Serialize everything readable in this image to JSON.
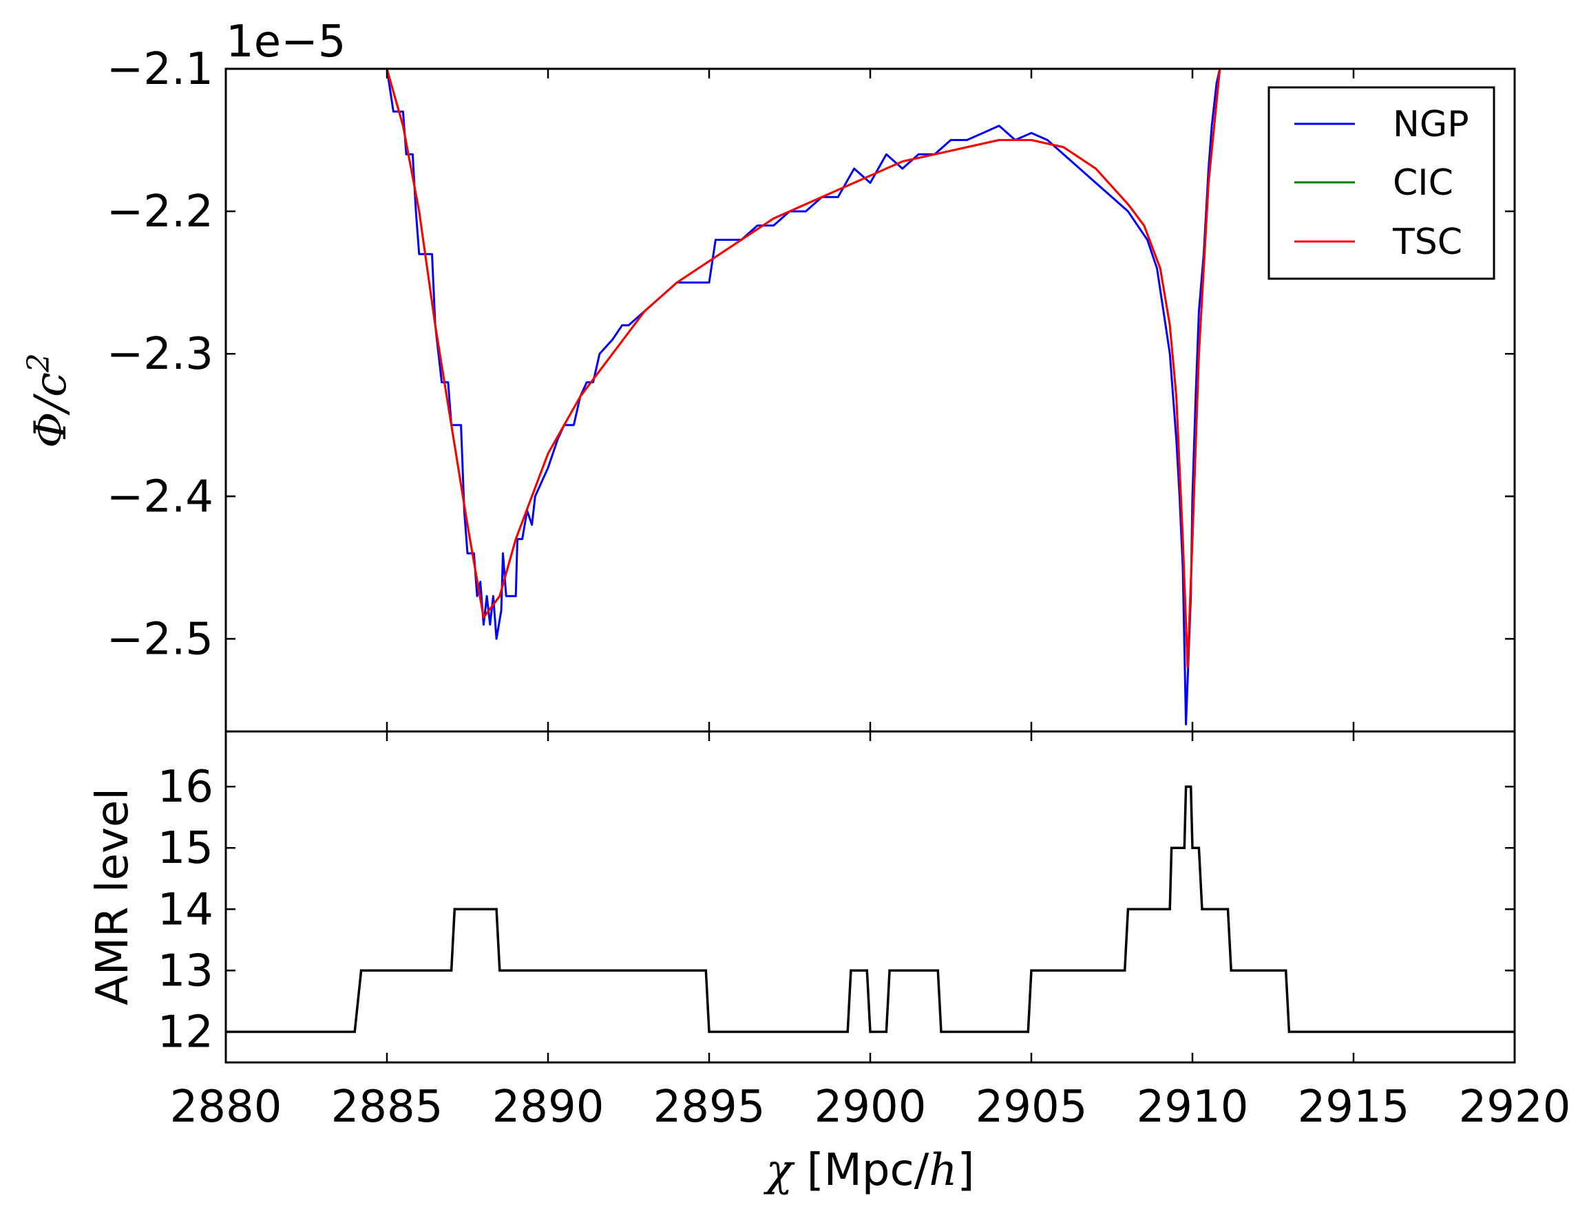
{
  "chart_data": [
    {
      "type": "line",
      "ylabel": "Φ/c²",
      "ylabel_parts": {
        "phi": "Φ",
        "slash": "/",
        "c": "c",
        "exp": "2"
      },
      "offset_label": "1e−5",
      "ylim": [
        -2.565,
        -2.1
      ],
      "yticks": [
        -2.5,
        -2.4,
        -2.3,
        -2.2,
        -2.1
      ],
      "ytick_labels": [
        "−2.5",
        "−2.4",
        "−2.3",
        "−2.2",
        "−2.1"
      ],
      "legend": "top-right",
      "series": [
        {
          "name": "NGP",
          "color": "#0000ff",
          "style": "stepped",
          "points": [
            [
              2885.0,
              -2.1
            ],
            [
              2885.2,
              -2.13
            ],
            [
              2885.5,
              -2.13
            ],
            [
              2885.6,
              -2.16
            ],
            [
              2885.8,
              -2.16
            ],
            [
              2885.9,
              -2.2
            ],
            [
              2886.0,
              -2.23
            ],
            [
              2886.4,
              -2.23
            ],
            [
              2886.5,
              -2.28
            ],
            [
              2886.7,
              -2.32
            ],
            [
              2886.9,
              -2.32
            ],
            [
              2887.0,
              -2.35
            ],
            [
              2887.3,
              -2.35
            ],
            [
              2887.4,
              -2.41
            ],
            [
              2887.5,
              -2.44
            ],
            [
              2887.7,
              -2.44
            ],
            [
              2887.8,
              -2.47
            ],
            [
              2887.9,
              -2.46
            ],
            [
              2888.0,
              -2.49
            ],
            [
              2888.1,
              -2.47
            ],
            [
              2888.2,
              -2.49
            ],
            [
              2888.3,
              -2.47
            ],
            [
              2888.4,
              -2.5
            ],
            [
              2888.55,
              -2.48
            ],
            [
              2888.6,
              -2.44
            ],
            [
              2888.7,
              -2.47
            ],
            [
              2889.0,
              -2.47
            ],
            [
              2889.05,
              -2.43
            ],
            [
              2889.2,
              -2.43
            ],
            [
              2889.35,
              -2.41
            ],
            [
              2889.5,
              -2.42
            ],
            [
              2889.6,
              -2.4
            ],
            [
              2890.0,
              -2.38
            ],
            [
              2890.3,
              -2.36
            ],
            [
              2890.5,
              -2.35
            ],
            [
              2890.8,
              -2.35
            ],
            [
              2891.0,
              -2.33
            ],
            [
              2891.2,
              -2.32
            ],
            [
              2891.4,
              -2.32
            ],
            [
              2891.6,
              -2.3
            ],
            [
              2892.0,
              -2.29
            ],
            [
              2892.3,
              -2.28
            ],
            [
              2892.5,
              -2.28
            ],
            [
              2893.0,
              -2.27
            ],
            [
              2893.5,
              -2.26
            ],
            [
              2894.0,
              -2.25
            ],
            [
              2895.0,
              -2.25
            ],
            [
              2895.2,
              -2.22
            ],
            [
              2896.0,
              -2.22
            ],
            [
              2896.5,
              -2.21
            ],
            [
              2897.0,
              -2.21
            ],
            [
              2897.5,
              -2.2
            ],
            [
              2898.0,
              -2.2
            ],
            [
              2898.5,
              -2.19
            ],
            [
              2899.0,
              -2.19
            ],
            [
              2899.5,
              -2.17
            ],
            [
              2900.0,
              -2.18
            ],
            [
              2900.5,
              -2.16
            ],
            [
              2901.0,
              -2.17
            ],
            [
              2901.5,
              -2.16
            ],
            [
              2902.0,
              -2.16
            ],
            [
              2902.5,
              -2.15
            ],
            [
              2903.0,
              -2.15
            ],
            [
              2903.5,
              -2.145
            ],
            [
              2904.0,
              -2.14
            ],
            [
              2904.5,
              -2.15
            ],
            [
              2905.0,
              -2.145
            ],
            [
              2905.5,
              -2.15
            ],
            [
              2906.0,
              -2.16
            ],
            [
              2906.5,
              -2.17
            ],
            [
              2907.0,
              -2.18
            ],
            [
              2907.5,
              -2.19
            ],
            [
              2908.0,
              -2.2
            ],
            [
              2908.3,
              -2.21
            ],
            [
              2908.6,
              -2.22
            ],
            [
              2908.9,
              -2.24
            ],
            [
              2909.1,
              -2.27
            ],
            [
              2909.3,
              -2.3
            ],
            [
              2909.4,
              -2.33
            ],
            [
              2909.5,
              -2.36
            ],
            [
              2909.6,
              -2.4
            ],
            [
              2909.7,
              -2.45
            ],
            [
              2909.8,
              -2.56
            ],
            [
              2909.9,
              -2.5
            ],
            [
              2909.95,
              -2.47
            ],
            [
              2910.0,
              -2.4
            ],
            [
              2910.1,
              -2.33
            ],
            [
              2910.2,
              -2.27
            ],
            [
              2910.35,
              -2.23
            ],
            [
              2910.5,
              -2.17
            ],
            [
              2910.6,
              -2.14
            ],
            [
              2910.75,
              -2.11
            ],
            [
              2910.85,
              -2.1
            ]
          ]
        },
        {
          "name": "CIC",
          "color": "#008000",
          "style": "smooth",
          "points": [
            [
              2885.0,
              -2.1
            ],
            [
              2885.5,
              -2.14
            ],
            [
              2886.0,
              -2.2
            ],
            [
              2886.5,
              -2.28
            ],
            [
              2887.0,
              -2.35
            ],
            [
              2887.5,
              -2.42
            ],
            [
              2888.0,
              -2.485
            ],
            [
              2888.5,
              -2.47
            ],
            [
              2889.0,
              -2.43
            ],
            [
              2890.0,
              -2.37
            ],
            [
              2891.0,
              -2.33
            ],
            [
              2892.0,
              -2.3
            ],
            [
              2893.0,
              -2.27
            ],
            [
              2894.0,
              -2.25
            ],
            [
              2895.0,
              -2.235
            ],
            [
              2896.0,
              -2.22
            ],
            [
              2897.0,
              -2.205
            ],
            [
              2898.0,
              -2.195
            ],
            [
              2899.0,
              -2.185
            ],
            [
              2900.0,
              -2.175
            ],
            [
              2901.0,
              -2.165
            ],
            [
              2902.0,
              -2.16
            ],
            [
              2903.0,
              -2.155
            ],
            [
              2904.0,
              -2.15
            ],
            [
              2905.0,
              -2.15
            ],
            [
              2906.0,
              -2.155
            ],
            [
              2907.0,
              -2.17
            ],
            [
              2908.0,
              -2.195
            ],
            [
              2908.5,
              -2.21
            ],
            [
              2909.0,
              -2.24
            ],
            [
              2909.3,
              -2.28
            ],
            [
              2909.5,
              -2.33
            ],
            [
              2909.7,
              -2.43
            ],
            [
              2909.85,
              -2.52
            ],
            [
              2910.0,
              -2.43
            ],
            [
              2910.2,
              -2.3
            ],
            [
              2910.5,
              -2.18
            ],
            [
              2910.85,
              -2.1
            ]
          ]
        },
        {
          "name": "TSC",
          "color": "#ff0000",
          "style": "smooth",
          "points": [
            [
              2885.0,
              -2.1
            ],
            [
              2885.5,
              -2.14
            ],
            [
              2886.0,
              -2.2
            ],
            [
              2886.5,
              -2.28
            ],
            [
              2887.0,
              -2.35
            ],
            [
              2887.5,
              -2.42
            ],
            [
              2888.0,
              -2.485
            ],
            [
              2888.5,
              -2.47
            ],
            [
              2889.0,
              -2.43
            ],
            [
              2890.0,
              -2.37
            ],
            [
              2891.0,
              -2.33
            ],
            [
              2892.0,
              -2.3
            ],
            [
              2893.0,
              -2.27
            ],
            [
              2894.0,
              -2.25
            ],
            [
              2895.0,
              -2.235
            ],
            [
              2896.0,
              -2.22
            ],
            [
              2897.0,
              -2.205
            ],
            [
              2898.0,
              -2.195
            ],
            [
              2899.0,
              -2.185
            ],
            [
              2900.0,
              -2.175
            ],
            [
              2901.0,
              -2.165
            ],
            [
              2902.0,
              -2.16
            ],
            [
              2903.0,
              -2.155
            ],
            [
              2904.0,
              -2.15
            ],
            [
              2905.0,
              -2.15
            ],
            [
              2906.0,
              -2.155
            ],
            [
              2907.0,
              -2.17
            ],
            [
              2908.0,
              -2.195
            ],
            [
              2908.5,
              -2.21
            ],
            [
              2909.0,
              -2.24
            ],
            [
              2909.3,
              -2.28
            ],
            [
              2909.5,
              -2.33
            ],
            [
              2909.7,
              -2.43
            ],
            [
              2909.85,
              -2.52
            ],
            [
              2910.0,
              -2.43
            ],
            [
              2910.2,
              -2.3
            ],
            [
              2910.5,
              -2.18
            ],
            [
              2910.85,
              -2.1
            ]
          ]
        }
      ]
    },
    {
      "type": "line",
      "ylabel": "AMR level",
      "xlabel": "χ [Mpc/h]",
      "xlabel_parts": {
        "chi": "χ",
        "unit_open": " [Mpc/",
        "h": "h",
        "unit_close": "]"
      },
      "xlim": [
        2880,
        2920
      ],
      "xticks": [
        2880,
        2885,
        2890,
        2895,
        2900,
        2905,
        2910,
        2915,
        2920
      ],
      "ylim": [
        11.5,
        16.9
      ],
      "yticks": [
        12,
        13,
        14,
        15,
        16
      ],
      "series": [
        {
          "color": "#000000",
          "style": "step",
          "points": [
            [
              2880,
              12
            ],
            [
              2884.0,
              12
            ],
            [
              2884.2,
              13
            ],
            [
              2887.0,
              13
            ],
            [
              2887.1,
              14
            ],
            [
              2888.4,
              14
            ],
            [
              2888.5,
              13
            ],
            [
              2894.9,
              13
            ],
            [
              2895.0,
              12
            ],
            [
              2899.3,
              12
            ],
            [
              2899.4,
              13
            ],
            [
              2899.9,
              13
            ],
            [
              2900.0,
              12
            ],
            [
              2900.5,
              12
            ],
            [
              2900.6,
              13
            ],
            [
              2902.1,
              13
            ],
            [
              2902.2,
              12
            ],
            [
              2904.9,
              12
            ],
            [
              2905.0,
              13
            ],
            [
              2907.9,
              13
            ],
            [
              2908.0,
              14
            ],
            [
              2909.3,
              14
            ],
            [
              2909.35,
              15
            ],
            [
              2909.75,
              15
            ],
            [
              2909.8,
              16
            ],
            [
              2909.95,
              16
            ],
            [
              2910.0,
              15
            ],
            [
              2910.2,
              15
            ],
            [
              2910.3,
              14
            ],
            [
              2911.1,
              14
            ],
            [
              2911.2,
              13
            ],
            [
              2912.9,
              13
            ],
            [
              2913.0,
              12
            ],
            [
              2920,
              12
            ]
          ]
        }
      ]
    }
  ]
}
